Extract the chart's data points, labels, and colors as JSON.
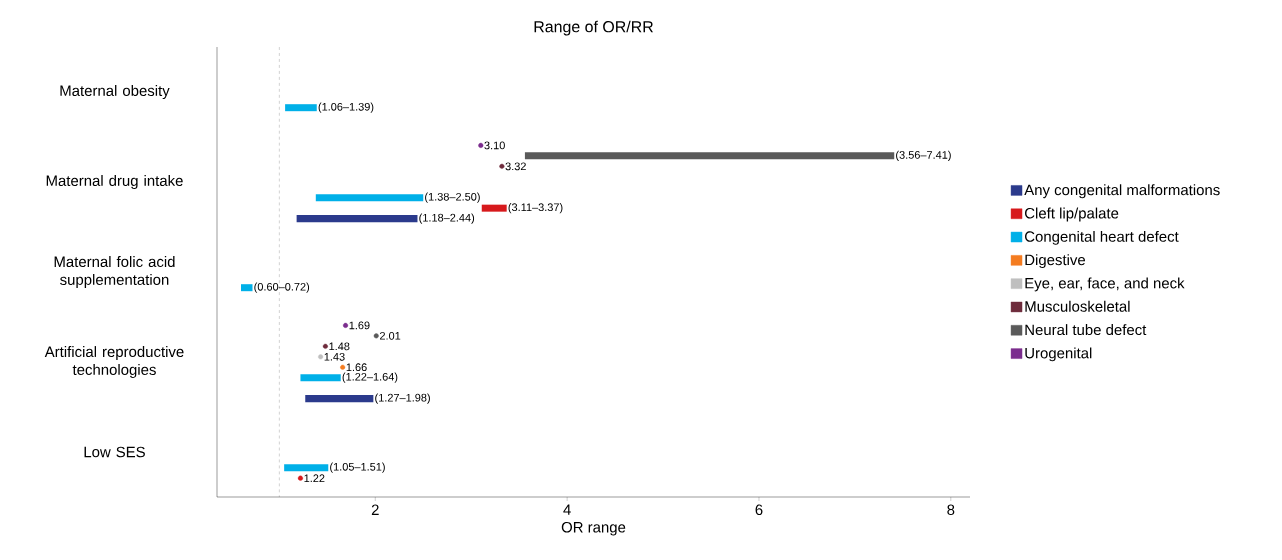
{
  "chart_data": {
    "type": "bar",
    "orientation": "horizontal",
    "title": "Range of OR/RR",
    "xlabel": "OR range",
    "categories": [
      "Maternal obesity",
      "Maternal drug intake",
      "Maternal folic acid supplementation",
      "Artificial reproductive technologies",
      "Low SES"
    ],
    "xlim": [
      0.35,
      8.2
    ],
    "xticks": [
      2,
      4,
      6,
      8
    ],
    "grid": false,
    "legend": "right",
    "ref_lines": [
      {
        "axis": "x",
        "value": 1,
        "color": "#c8c8c8",
        "line_style": "dashed"
      }
    ],
    "series": [
      {
        "name": "Any congenital malformations",
        "type": "bar",
        "color": "#2b3a8c",
        "base": [
          null,
          1.18,
          null,
          1.27,
          null
        ],
        "values": [
          null,
          1.26,
          null,
          0.71,
          null
        ],
        "value_labels": [
          null,
          "(1.18–2.44)",
          null,
          "(1.27–1.98)",
          null
        ]
      },
      {
        "name": "Cleft lip/palate",
        "type": "bar",
        "color": "#d7191c",
        "base": [
          null,
          3.11,
          null,
          null,
          null
        ],
        "values": [
          null,
          0.26,
          null,
          null,
          null
        ],
        "value_labels": [
          null,
          "(3.11–3.37)",
          null,
          null,
          null
        ]
      },
      {
        "type": "scatter",
        "color": "#d7191c",
        "values": [
          null,
          null,
          null,
          null,
          1.22
        ],
        "value_labels": [
          null,
          null,
          null,
          null,
          "1.22"
        ]
      },
      {
        "name": "Congenital heart defect",
        "type": "bar",
        "color": "#00b0e8",
        "base": [
          1.06,
          1.38,
          0.6,
          1.22,
          1.05
        ],
        "values": [
          0.33,
          1.12,
          0.12,
          0.42,
          0.46
        ],
        "value_labels": [
          "(1.06–1.39)",
          "(1.38–2.50)",
          "(0.60–0.72)",
          "(1.22–1.64)",
          "(1.05–1.51)"
        ]
      },
      {
        "name": "Digestive",
        "type": "scatter",
        "color": "#f47c20",
        "values": [
          null,
          null,
          null,
          1.66,
          null
        ],
        "value_labels": [
          null,
          null,
          null,
          "1.66",
          null
        ]
      },
      {
        "name": "Eye, ear, face, and neck",
        "type": "scatter",
        "color": "#bfbfbf",
        "values": [
          null,
          null,
          null,
          1.43,
          null
        ],
        "value_labels": [
          null,
          null,
          null,
          "1.43",
          null
        ]
      },
      {
        "name": "Musculoskeletal",
        "type": "scatter",
        "color": "#6e2c3c",
        "values": [
          null,
          3.32,
          null,
          1.48,
          null
        ],
        "value_labels": [
          null,
          "3.32",
          null,
          "1.48",
          null
        ]
      },
      {
        "name": "Neural tube defect",
        "type": "bar",
        "color": "#5a5a5a",
        "base": [
          null,
          3.56,
          null,
          null,
          null
        ],
        "values": [
          null,
          3.85,
          null,
          null,
          null
        ],
        "value_labels": [
          null,
          "(3.56–7.41)",
          null,
          null,
          null
        ]
      },
      {
        "type": "scatter",
        "color": "#5a5a5a",
        "values": [
          null,
          null,
          null,
          2.01,
          null
        ],
        "value_labels": [
          null,
          null,
          null,
          "2.01",
          null
        ]
      },
      {
        "name": "Urogenital",
        "type": "scatter",
        "color": "#7b2d8e",
        "values": [
          null,
          3.1,
          null,
          1.69,
          null
        ],
        "value_labels": [
          null,
          "3.10",
          null,
          "1.69",
          null
        ]
      }
    ]
  }
}
